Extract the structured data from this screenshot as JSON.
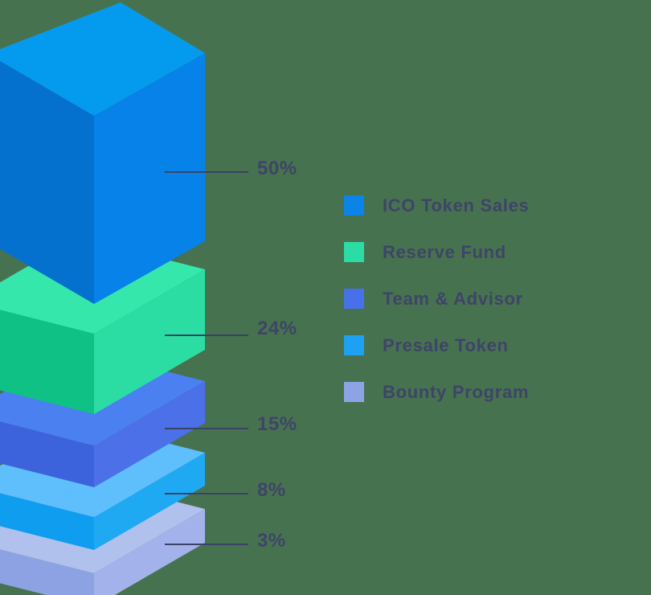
{
  "chart_data": {
    "type": "isometric-stacked-bar",
    "title": "",
    "units": "%",
    "legend_position": "right",
    "blocks": [
      {
        "label": "ICO Token Sales",
        "value": 50,
        "percent_label": "50%",
        "colors": {
          "top": "#049BEF",
          "left": "#0571CE",
          "right": "#0682E8",
          "swatch": "#0B84E8"
        }
      },
      {
        "label": "Reserve Fund",
        "value": 24,
        "percent_label": "24%",
        "colors": {
          "top": "#36E7AC",
          "left": "#0FC185",
          "right": "#2CDDA3",
          "swatch": "#2BDCA4"
        }
      },
      {
        "label": "Team & Advisor",
        "value": 15,
        "percent_label": "15%",
        "colors": {
          "top": "#4A80F0",
          "left": "#3C63DC",
          "right": "#4B70E8",
          "swatch": "#4870EA"
        }
      },
      {
        "label": "Presale Token",
        "value": 8,
        "percent_label": "8%",
        "colors": {
          "top": "#5FBEFC",
          "left": "#0F9DEF",
          "right": "#1FA9F3",
          "swatch": "#1DA1F2"
        }
      },
      {
        "label": "Bounty Program",
        "value": 3,
        "percent_label": "3%",
        "colors": {
          "top": "#B0C1ED",
          "left": "#8DA2E2",
          "right": "#A3B2EA",
          "swatch": "#8EA3E4"
        }
      }
    ],
    "colors": {
      "background": "#47724F",
      "text": "#3E4468",
      "leader_line": "#3A4266"
    }
  }
}
